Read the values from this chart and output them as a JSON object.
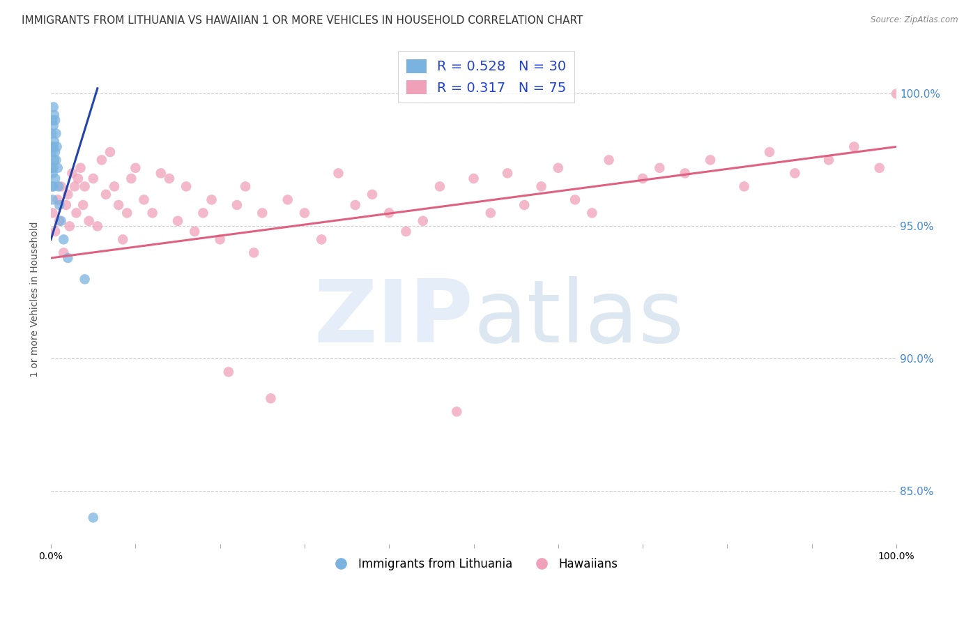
{
  "title": "IMMIGRANTS FROM LITHUANIA VS HAWAIIAN 1 OR MORE VEHICLES IN HOUSEHOLD CORRELATION CHART",
  "source": "Source: ZipAtlas.com",
  "ylabel": "1 or more Vehicles in Household",
  "y_ticks": [
    85.0,
    90.0,
    95.0,
    100.0
  ],
  "scatter_blue_color": "#7ab3e0",
  "scatter_pink_color": "#f0a0b8",
  "line_blue_color": "#2244aa",
  "line_pink_color": "#e06080",
  "bg_color": "#ffffff",
  "grid_color": "#cccccc",
  "grid_style": "--",
  "title_fontsize": 11,
  "axis_fontsize": 9,
  "tick_fontsize": 9,
  "right_tick_color": "#4488cc",
  "legend_color": "#2244cc",
  "xlim": [
    0.0,
    1.0
  ],
  "ylim": [
    83.0,
    101.5
  ],
  "blue_scatter_x": [
    0.001,
    0.001,
    0.001,
    0.001,
    0.002,
    0.002,
    0.002,
    0.002,
    0.003,
    0.003,
    0.003,
    0.003,
    0.003,
    0.004,
    0.004,
    0.004,
    0.005,
    0.005,
    0.005,
    0.006,
    0.006,
    0.007,
    0.008,
    0.009,
    0.01,
    0.012,
    0.015,
    0.02,
    0.04,
    0.05
  ],
  "blue_scatter_y": [
    98.5,
    97.8,
    97.2,
    96.5,
    99.0,
    98.0,
    97.0,
    96.0,
    99.5,
    98.8,
    98.0,
    97.2,
    96.5,
    99.2,
    98.2,
    97.5,
    99.0,
    97.8,
    96.8,
    98.5,
    97.5,
    98.0,
    97.2,
    96.5,
    95.8,
    95.2,
    94.5,
    93.8,
    93.0,
    84.0
  ],
  "pink_scatter_x": [
    0.002,
    0.005,
    0.008,
    0.01,
    0.012,
    0.015,
    0.018,
    0.02,
    0.022,
    0.025,
    0.028,
    0.03,
    0.032,
    0.035,
    0.038,
    0.04,
    0.045,
    0.05,
    0.055,
    0.06,
    0.065,
    0.07,
    0.075,
    0.08,
    0.085,
    0.09,
    0.095,
    0.1,
    0.11,
    0.12,
    0.13,
    0.14,
    0.15,
    0.16,
    0.17,
    0.18,
    0.19,
    0.2,
    0.21,
    0.22,
    0.23,
    0.24,
    0.25,
    0.26,
    0.28,
    0.3,
    0.32,
    0.34,
    0.36,
    0.38,
    0.4,
    0.42,
    0.44,
    0.46,
    0.48,
    0.5,
    0.52,
    0.54,
    0.56,
    0.58,
    0.6,
    0.62,
    0.64,
    0.66,
    0.7,
    0.72,
    0.75,
    0.78,
    0.82,
    0.85,
    0.88,
    0.92,
    0.95,
    0.98,
    1.0
  ],
  "pink_scatter_y": [
    95.5,
    94.8,
    96.0,
    95.2,
    96.5,
    94.0,
    95.8,
    96.2,
    95.0,
    97.0,
    96.5,
    95.5,
    96.8,
    97.2,
    95.8,
    96.5,
    95.2,
    96.8,
    95.0,
    97.5,
    96.2,
    97.8,
    96.5,
    95.8,
    94.5,
    95.5,
    96.8,
    97.2,
    96.0,
    95.5,
    97.0,
    96.8,
    95.2,
    96.5,
    94.8,
    95.5,
    96.0,
    94.5,
    89.5,
    95.8,
    96.5,
    94.0,
    95.5,
    88.5,
    96.0,
    95.5,
    94.5,
    97.0,
    95.8,
    96.2,
    95.5,
    94.8,
    95.2,
    96.5,
    88.0,
    96.8,
    95.5,
    97.0,
    95.8,
    96.5,
    97.2,
    96.0,
    95.5,
    97.5,
    96.8,
    97.2,
    97.0,
    97.5,
    96.5,
    97.8,
    97.0,
    97.5,
    98.0,
    97.2,
    100.0
  ],
  "blue_line_x": [
    0.0,
    0.055
  ],
  "blue_line_y": [
    94.5,
    100.2
  ],
  "pink_line_x": [
    0.0,
    1.0
  ],
  "pink_line_y": [
    93.8,
    98.0
  ]
}
